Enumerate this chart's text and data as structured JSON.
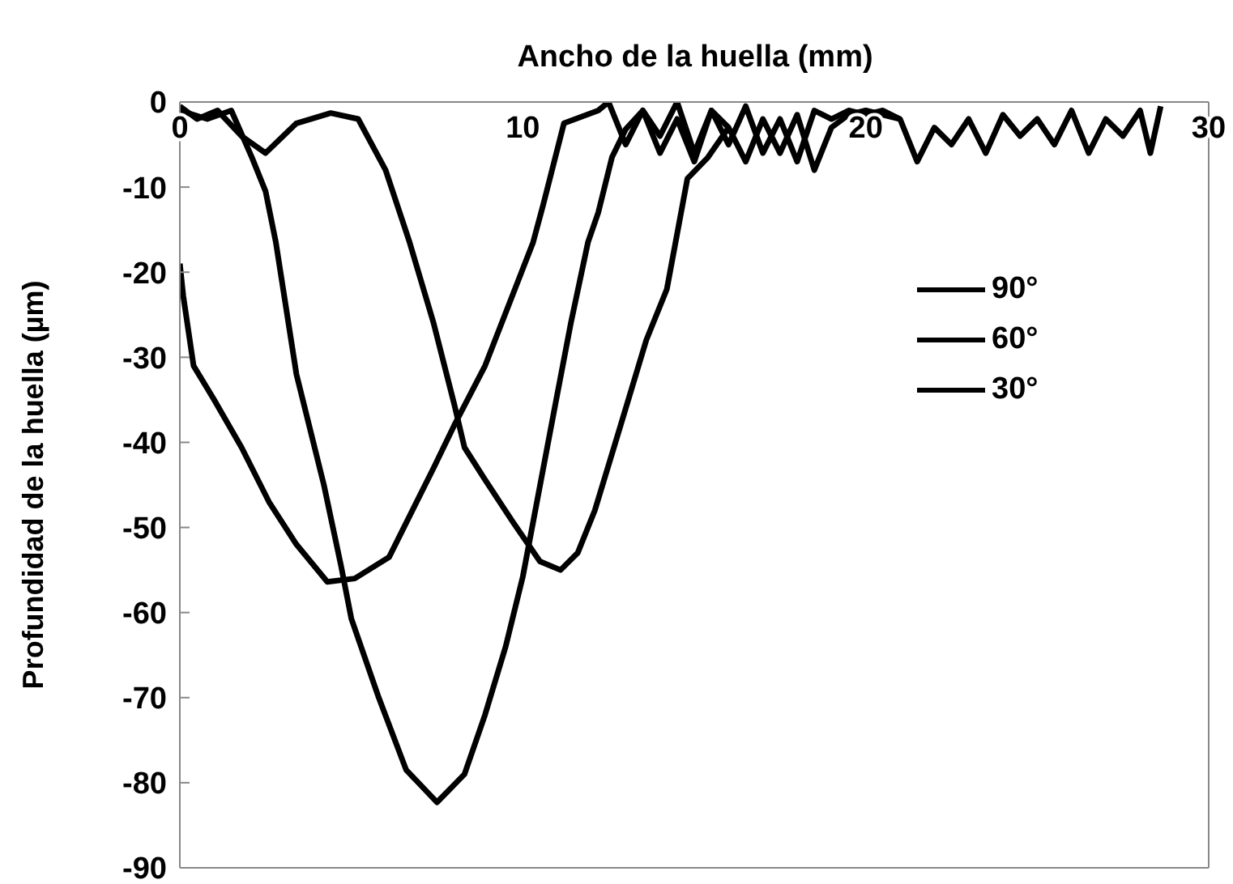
{
  "chart_data": {
    "type": "line",
    "xlabel": "Ancho de la huella (mm)",
    "ylabel": "Profundidad de la huella (µm)",
    "xlim": [
      0,
      30
    ],
    "xticks": [
      0,
      10,
      20,
      30
    ],
    "ylim": [
      -90,
      0
    ],
    "yticks": [
      -90,
      -80,
      -70,
      -60,
      -50,
      -40,
      -30,
      -20,
      -10,
      0
    ],
    "grid": false,
    "legend": "right",
    "marker": "none",
    "line_style": "solid",
    "series": [
      {
        "name": "90°",
        "color": "#000000",
        "x": [
          0,
          0.8,
          1.5,
          2.1,
          2.5,
          2.8,
          3.4,
          4.2,
          4.7,
          5.0,
          5.8,
          6.6,
          7.5,
          8.3,
          8.9,
          9.5,
          10.0,
          10.8,
          11.4,
          11.9,
          12.2,
          12.6,
          13.0,
          13.5,
          14,
          14.5,
          15,
          15.5,
          16,
          16.5,
          17,
          17.5,
          18,
          18.5,
          19,
          19.5,
          20,
          20.5,
          21
        ],
        "values": [
          -1,
          -2,
          -1,
          -6.5,
          -10.5,
          -16.5,
          -32,
          -45,
          -54.5,
          -60.7,
          -70,
          -78.5,
          -82.3,
          -79,
          -72,
          -64,
          -55.8,
          -38.7,
          -26,
          -16.5,
          -13,
          -6.5,
          -3.2,
          -1,
          -6,
          -2,
          -7,
          -1,
          -5,
          -0.5,
          -6,
          -2,
          -7,
          -1,
          -2,
          -1,
          -1.5,
          -1,
          -2
        ]
      },
      {
        "name": "60°",
        "color": "#000000",
        "x": [
          0,
          0.1,
          0.4,
          1.0,
          1.8,
          2.6,
          3.4,
          4.3,
          5.1,
          6.1,
          7.4,
          8.0,
          8.9,
          10.3,
          10.6,
          11.2,
          12.2,
          12.5,
          13,
          13.5,
          14,
          14.5,
          15,
          15.5,
          16
        ],
        "values": [
          -19,
          -22.8,
          -31,
          -35,
          -40.6,
          -47,
          -52,
          -56.4,
          -56,
          -53.5,
          -43,
          -38,
          -31,
          -16.5,
          -12,
          -2.5,
          -1,
          0,
          -5,
          -1,
          -4,
          0,
          -6,
          -1,
          -3
        ]
      },
      {
        "name": "30°",
        "color": "#000000",
        "x": [
          0,
          0.5,
          1.1,
          1.8,
          2.5,
          3.4,
          4.4,
          5.2,
          6.0,
          6.7,
          7.4,
          8.0,
          8.3,
          8.9,
          9.7,
          10.5,
          11.1,
          11.6,
          12.1,
          12.8,
          13.6,
          14.2,
          14.8,
          15.4,
          16,
          16.5,
          17,
          17.5,
          18,
          18.5,
          19,
          19.5,
          20,
          20.5,
          21,
          21.5,
          22,
          22.5,
          23,
          23.5,
          24,
          24.5,
          25,
          25.5,
          26,
          26.5,
          27,
          27.5,
          28,
          28.3,
          28.6
        ],
        "values": [
          -0.5,
          -2,
          -1,
          -4,
          -6,
          -2.5,
          -1.3,
          -2,
          -8,
          -16.5,
          -26,
          -35.5,
          -40.6,
          -44.4,
          -49.3,
          -54,
          -55,
          -53,
          -48,
          -38.7,
          -28,
          -22,
          -9,
          -6.5,
          -3,
          -7,
          -2,
          -6,
          -1.5,
          -8,
          -3,
          -1.5,
          -1,
          -1.5,
          -2,
          -7,
          -3,
          -5,
          -2,
          -6,
          -1.5,
          -4,
          -2,
          -5,
          -1,
          -6,
          -2,
          -4,
          -1,
          -6,
          -0.5
        ]
      }
    ]
  }
}
